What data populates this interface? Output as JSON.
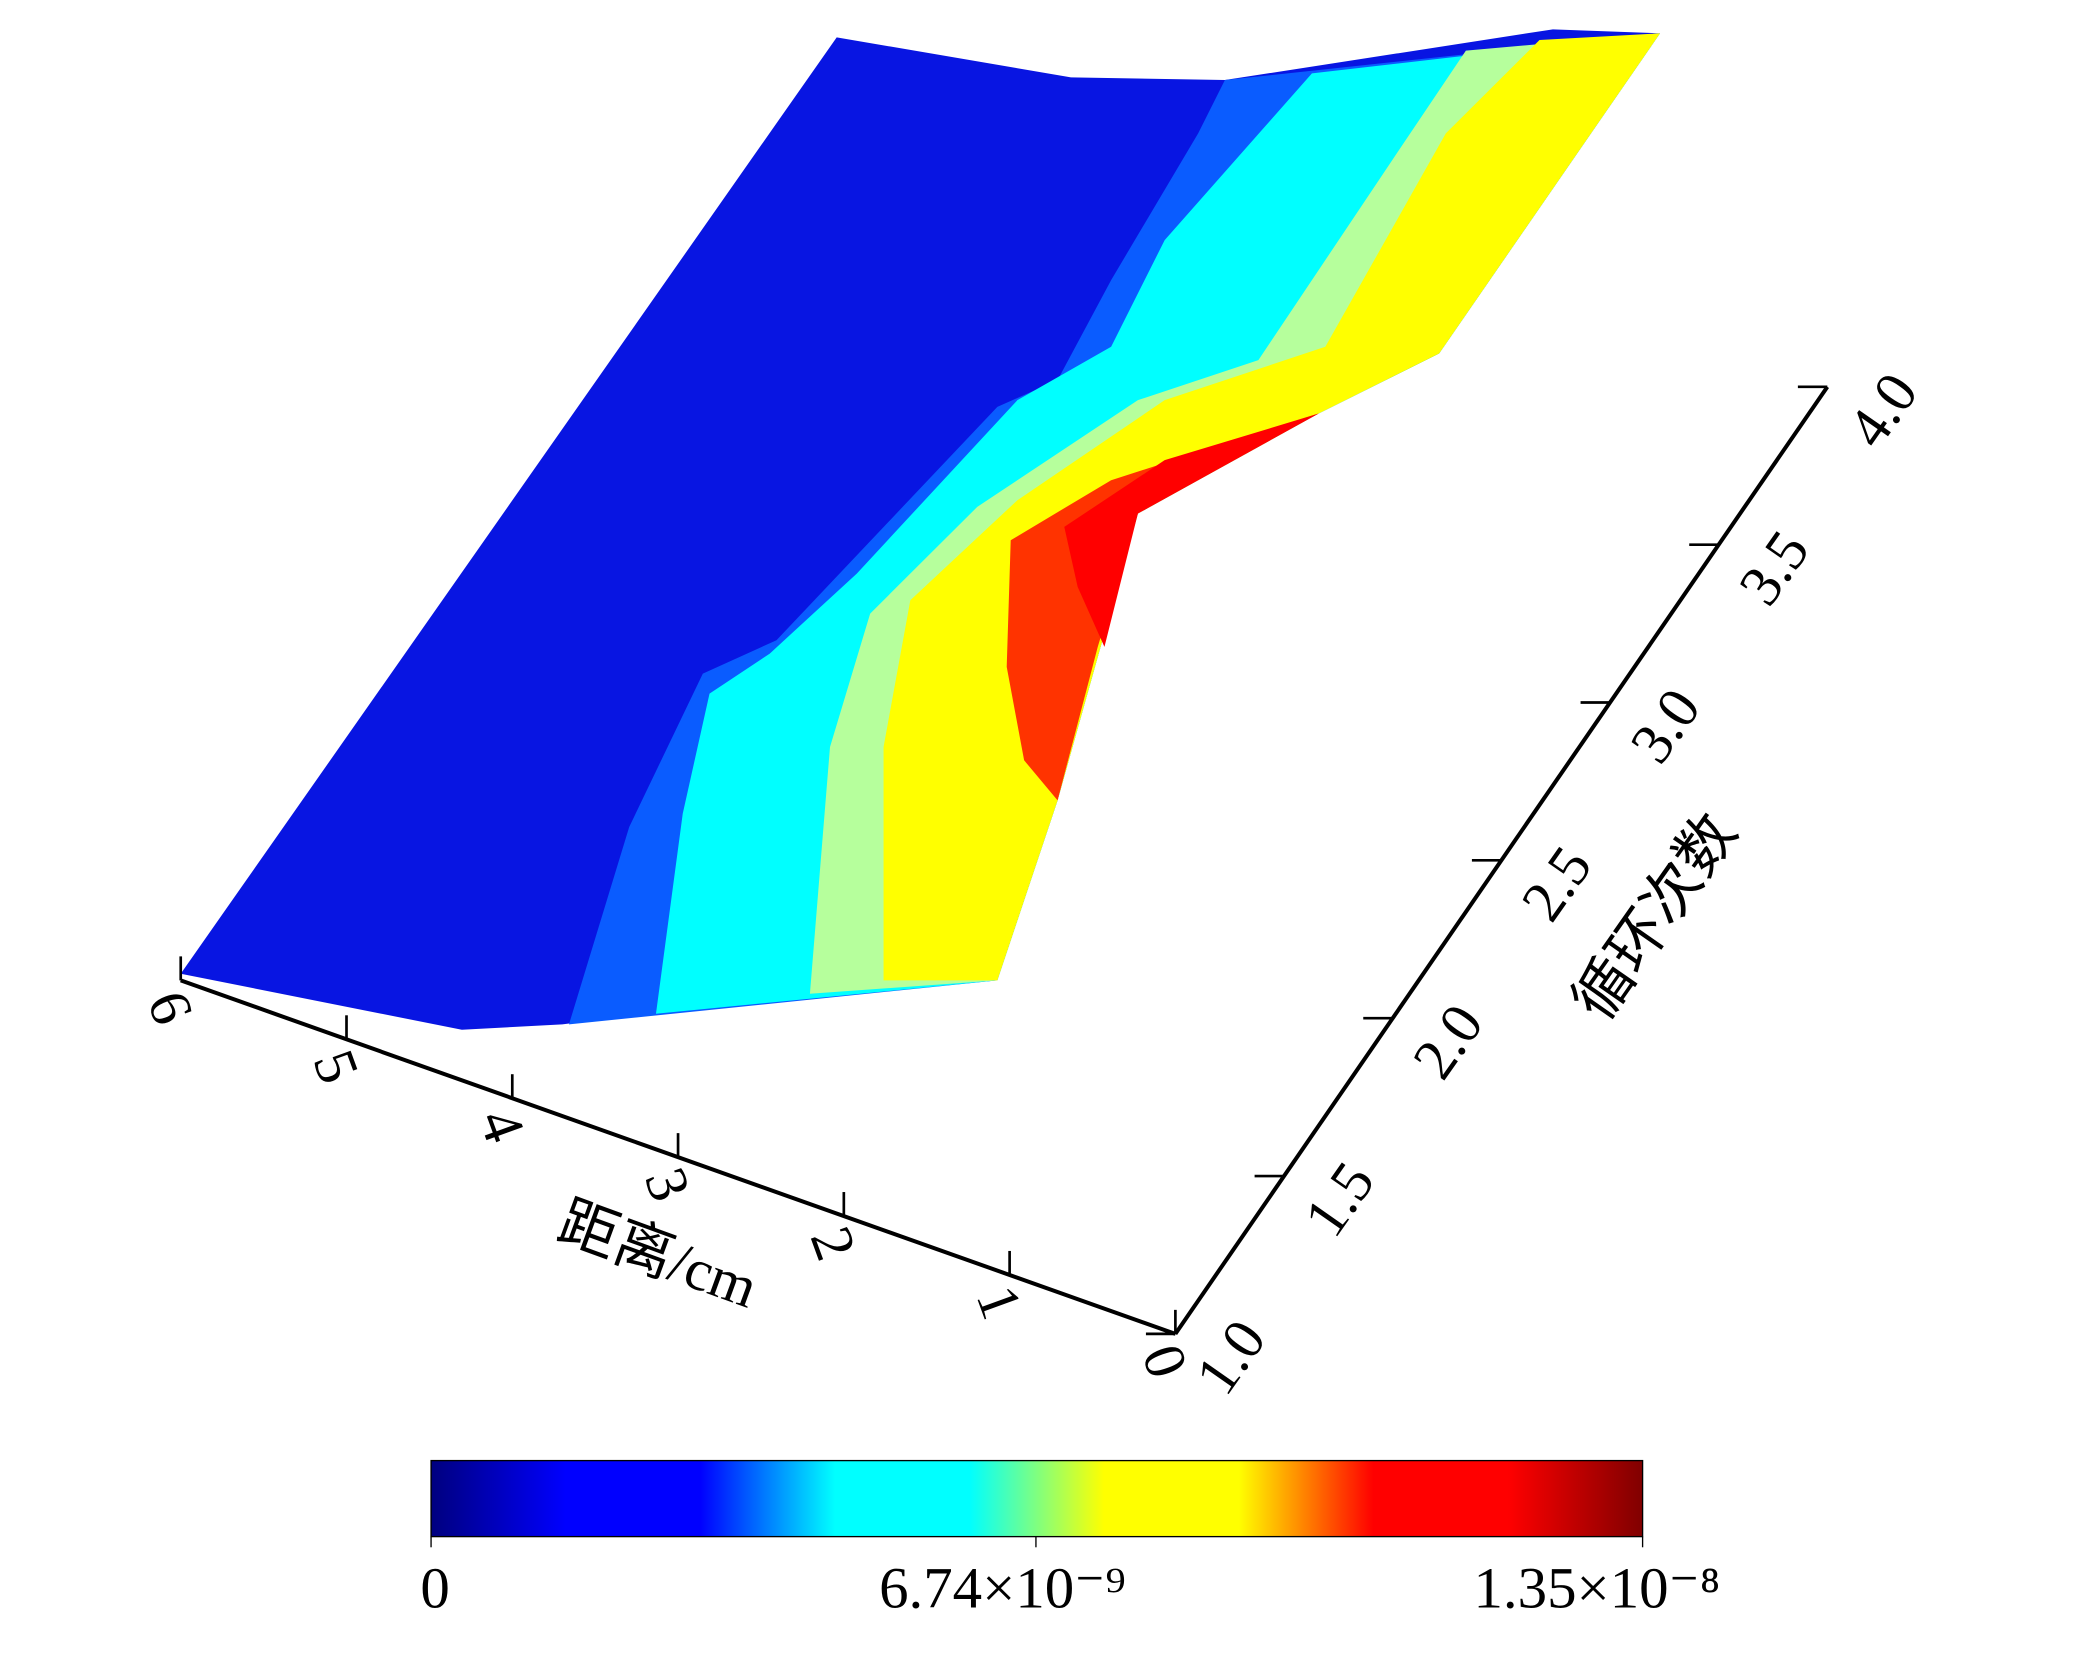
{
  "chart_data": {
    "type": "surface3d",
    "x_label": "距离/cm",
    "y_label": "循环次数",
    "xlim": [
      0,
      6
    ],
    "xticks": [
      0,
      1,
      2,
      3,
      4,
      5,
      6
    ],
    "ylim": [
      1,
      4
    ],
    "yticks": [
      {
        "value": 1,
        "label": "1.0"
      },
      {
        "value": 1.5,
        "label": "1.5"
      },
      {
        "value": 2,
        "label": "2.0"
      },
      {
        "value": 2.5,
        "label": "2.5"
      },
      {
        "value": 3,
        "label": "3.0"
      },
      {
        "value": 3.5,
        "label": "3.5"
      },
      {
        "value": 4,
        "label": "4.0"
      }
    ],
    "surface_colors": [
      "#0815e2",
      "#0a5cff",
      "#00ffff",
      "#b6ff9c",
      "#ffff00",
      "#ff3300",
      "#ff0000"
    ],
    "colorbar": {
      "lim": [
        0,
        1.35e-08
      ],
      "ticks": [
        0,
        {
          "value": 6.74e-09,
          "label": "6.74×10⁻⁹"
        },
        {
          "value": 1.35e-08,
          "label": "1.35×10⁻⁸"
        }
      ],
      "colors": [
        "#00007f",
        "#0000ff",
        "#0000ff",
        "#00ffff",
        "#00ffff",
        "#ffff00",
        "#ffff00",
        "#ff0000",
        "#ff0000",
        "#800000"
      ]
    }
  }
}
